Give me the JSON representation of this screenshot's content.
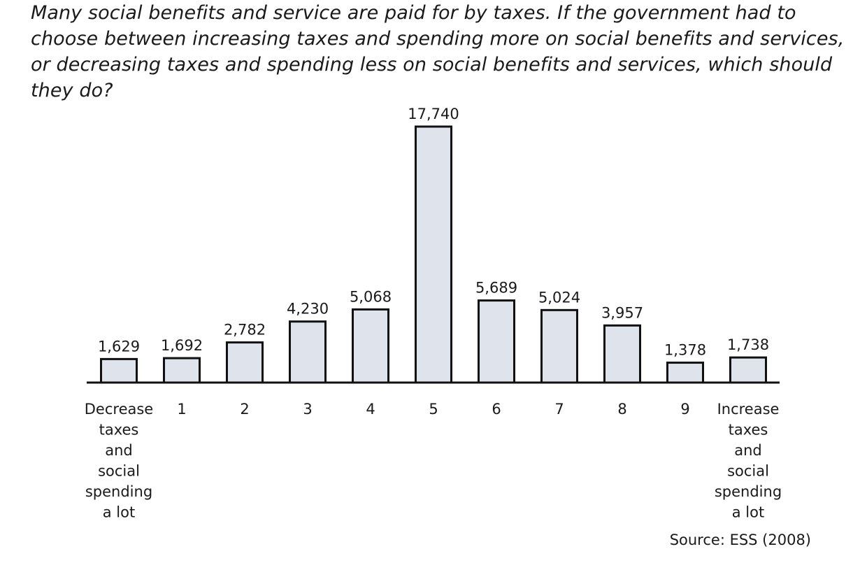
{
  "chart_data": {
    "type": "bar",
    "title": "Many social benefits and service are paid for by taxes. If the government had to choose between increasing taxes and spending more on social benefits and services, or decreasing taxes and spending less on social benefits and services, which should they do?",
    "categories": [
      "Decrease taxes and social spending a lot",
      "1",
      "2",
      "3",
      "4",
      "5",
      "6",
      "7",
      "8",
      "9",
      "Increase taxes and social spending a lot"
    ],
    "values": [
      1629,
      1692,
      2782,
      4230,
      5068,
      17740,
      5689,
      5024,
      3957,
      1378,
      1738
    ],
    "value_labels": [
      "1,629",
      "1,692",
      "2,782",
      "4,230",
      "5,068",
      "17,740",
      "5,689",
      "5,024",
      "3,957",
      "1,378",
      "1,738"
    ],
    "tick_labels": [
      [
        "Decrease",
        "taxes",
        "and",
        "social",
        "spending",
        "a lot"
      ],
      [
        "1"
      ],
      [
        "2"
      ],
      [
        "3"
      ],
      [
        "4"
      ],
      [
        "5"
      ],
      [
        "6"
      ],
      [
        "7"
      ],
      [
        "8"
      ],
      [
        "9"
      ],
      [
        "Increase",
        "taxes",
        "and",
        "social",
        "spending",
        "a lot"
      ]
    ],
    "ylim": [
      0,
      17740
    ],
    "grid": false,
    "xlabel": "",
    "ylabel": "",
    "source": "Source: ESS (2008)",
    "bar_color": "#dfe3ec",
    "bar_outline_color": "#111111"
  }
}
